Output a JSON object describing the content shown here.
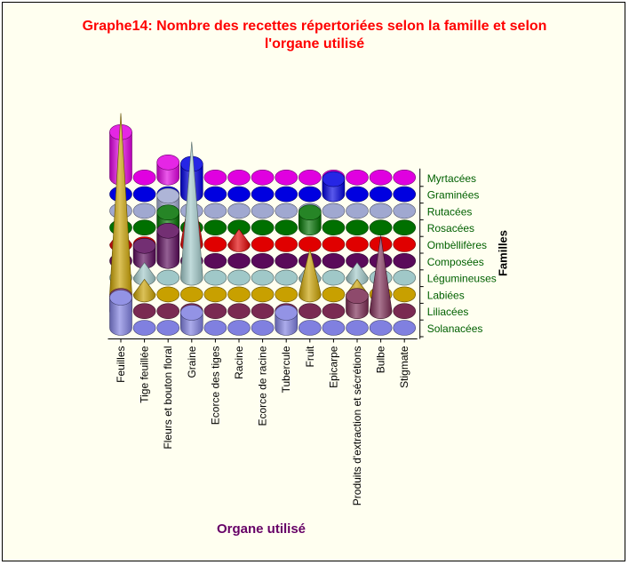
{
  "chart_data": {
    "type": "3d-cone-grid",
    "title_lines": [
      "Graphe14: Nombre des recettes répertoriées selon la famille et selon",
      "l'organe utilisé"
    ],
    "xlabel": "Organe utilisé",
    "ylabel": "Familles",
    "categories": [
      "Feuilles",
      "Tige feuillée",
      "Fleurs et bouton floral",
      "Graine",
      "Ecorce des tiges",
      "Racine",
      "Ecorce de racine",
      "Tubercule",
      "Fruit",
      "Epicarpe",
      "Produits d'extraction et sécrétions",
      "Bulbe",
      "Stigmate"
    ],
    "series": [
      {
        "name": "Solanacées",
        "color": "#8080e0",
        "values": [
          2,
          0,
          0,
          1,
          0,
          0,
          0,
          1,
          0,
          0,
          0,
          0,
          0
        ]
      },
      {
        "name": "Liliacées",
        "color": "#7a2a52",
        "values": [
          1,
          0,
          0,
          0,
          0,
          0,
          0,
          0,
          0,
          0,
          1,
          5,
          0
        ]
      },
      {
        "name": "Labiées",
        "color": "#c8a000",
        "values": [
          12,
          1,
          0,
          0,
          0,
          0,
          0,
          0,
          3,
          0,
          1,
          0,
          0
        ]
      },
      {
        "name": "Légumineuses",
        "color": "#a0c8c8",
        "values": [
          0,
          1,
          0,
          9,
          0,
          0,
          0,
          0,
          1,
          0,
          1,
          0,
          0
        ]
      },
      {
        "name": "Composées",
        "color": "#5a0a5a",
        "values": [
          0,
          1,
          2,
          0,
          0,
          0,
          0,
          0,
          0,
          0,
          0,
          0,
          0
        ]
      },
      {
        "name": "Ombèllifères",
        "color": "#e00000",
        "values": [
          1,
          0,
          0,
          4,
          0,
          1,
          0,
          0,
          0,
          0,
          0,
          0,
          0
        ]
      },
      {
        "name": "Rosacées",
        "color": "#007000",
        "values": [
          0,
          0,
          1,
          0,
          0,
          0,
          0,
          0,
          1,
          0,
          0,
          0,
          0
        ]
      },
      {
        "name": "Rutacées",
        "color": "#a0a8d0",
        "values": [
          0,
          0,
          1,
          0,
          0,
          0,
          0,
          0,
          0,
          0,
          0,
          0,
          0
        ]
      },
      {
        "name": "Graminées",
        "color": "#0000e0",
        "values": [
          0,
          0,
          0,
          2,
          0,
          0,
          0,
          0,
          0,
          1,
          0,
          0,
          0
        ]
      },
      {
        "name": "Myrtacées",
        "color": "#e000e0",
        "values": [
          3,
          0,
          1,
          0,
          0,
          0,
          0,
          0,
          0,
          0,
          0,
          0,
          0
        ]
      }
    ],
    "series_shapes": [
      "cylinder",
      "cylinder",
      "cone",
      "cone",
      "cylinder",
      "cone",
      "cylinder",
      "cylinder",
      "cylinder",
      "cylinder"
    ],
    "series_shape_overrides": {
      "Légumineuses|Graine": "cone",
      "Légumineuses|Produits d'extraction et sécrétions": "cone",
      "Ombèllifères|Graine": "cone",
      "Labiées|Feuilles": "cone",
      "Liliacées|Bulbe": "cone"
    },
    "legend_placement": "right",
    "grid": false
  }
}
